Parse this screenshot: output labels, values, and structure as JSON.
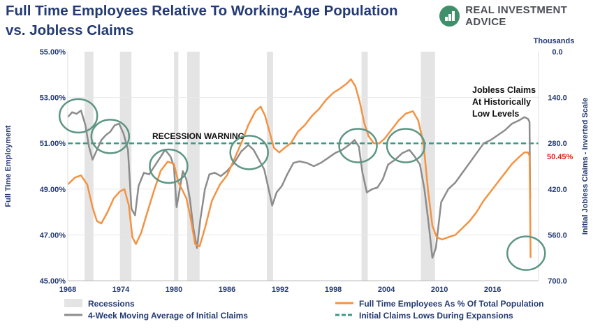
{
  "header": {
    "title_line1": "Full Time Employees Relative To Working-Age Population",
    "title_line2": "vs. Jobless Claims",
    "brand": "REAL INVESTMENT ADVICE"
  },
  "chart_data": {
    "type": "line",
    "title": "Full Time Employees Relative To Working-Age Population vs. Jobless Claims",
    "ylabel": "Full Time Employment",
    "y2label": "Initial Jobless Claims - Inverted Scale",
    "y2unit": "Thousands",
    "xlim": [
      1968,
      2021.2
    ],
    "ylim": [
      45,
      55
    ],
    "y2lim": [
      0,
      700
    ],
    "y2_inverted": true,
    "x_ticks": [
      "1968",
      "1974",
      "1980",
      "1986",
      "1992",
      "1998",
      "2004",
      "2010",
      "2016"
    ],
    "y_ticks": [
      "45.00%",
      "47.00%",
      "49.00%",
      "51.00%",
      "53.00%",
      "55.00%"
    ],
    "y2_ticks": [
      "0.0",
      "140.0",
      "280.0",
      "420.0",
      "560.0",
      "700.0"
    ],
    "grid": true,
    "recessions": [
      [
        1969.9,
        1970.9
      ],
      [
        1973.9,
        1975.2
      ],
      [
        1980.0,
        1980.5
      ],
      [
        1981.5,
        1982.9
      ],
      [
        1990.5,
        1991.2
      ],
      [
        2001.2,
        2001.9
      ],
      [
        2007.9,
        2009.5
      ]
    ],
    "reference_line": {
      "value": 51.0,
      "label": "RECESSION WARNING"
    },
    "annotation": {
      "text": [
        "Jobless Claims",
        "At Historically",
        "Low Levels"
      ]
    },
    "last_value_label": "50.45%",
    "series": [
      {
        "name": "Full Time Employees As % Of Total Population",
        "color": "#f39343",
        "x": [
          1968,
          1968.8,
          1969.5,
          1970.2,
          1970.8,
          1971.3,
          1971.8,
          1972.5,
          1973.2,
          1973.9,
          1974.4,
          1974.9,
          1975.3,
          1975.7,
          1976.3,
          1977.0,
          1977.8,
          1978.5,
          1979.3,
          1980.0,
          1980.5,
          1980.9,
          1981.4,
          1981.9,
          1982.4,
          1982.9,
          1983.5,
          1984.3,
          1985.2,
          1986.0,
          1986.8,
          1987.6,
          1988.4,
          1989.2,
          1989.8,
          1990.3,
          1990.8,
          1991.3,
          1991.9,
          1992.5,
          1993.2,
          1994.0,
          1994.8,
          1995.6,
          1996.4,
          1997.2,
          1998.0,
          1998.8,
          1999.5,
          2000.0,
          2000.5,
          2001.0,
          2001.5,
          2002.0,
          2002.6,
          2003.2,
          2003.8,
          2004.6,
          2005.4,
          2006.2,
          2007.0,
          2007.6,
          2008.2,
          2008.7,
          2009.2,
          2009.7,
          2010.3,
          2011.0,
          2011.8,
          2012.6,
          2013.4,
          2014.2,
          2015.0,
          2015.8,
          2016.6,
          2017.4,
          2018.2,
          2019.0,
          2019.6,
          2020.0,
          2020.18,
          2020.25,
          2020.3
        ],
        "values": [
          49.2,
          49.5,
          49.6,
          49.2,
          48.2,
          47.6,
          47.5,
          48.0,
          48.6,
          48.9,
          49.0,
          48.3,
          46.9,
          46.6,
          47.1,
          48.0,
          49.0,
          49.8,
          50.2,
          50.1,
          49.3,
          49.0,
          48.6,
          47.7,
          46.6,
          46.5,
          47.3,
          48.5,
          49.2,
          49.6,
          50.3,
          51.0,
          51.8,
          52.4,
          52.6,
          52.2,
          51.5,
          50.8,
          50.6,
          50.8,
          51.0,
          51.5,
          51.8,
          52.2,
          52.5,
          52.9,
          53.2,
          53.4,
          53.6,
          53.8,
          53.5,
          52.8,
          51.9,
          51.3,
          51.0,
          51.0,
          51.2,
          51.6,
          52.0,
          52.3,
          52.4,
          52.0,
          51.0,
          49.0,
          47.4,
          46.9,
          46.8,
          46.9,
          47.0,
          47.3,
          47.6,
          48.0,
          48.5,
          48.9,
          49.3,
          49.7,
          50.1,
          50.4,
          50.6,
          50.6,
          50.45,
          48.0,
          46.0
        ]
      },
      {
        "name": "4-Week Moving Average of Initial Claims",
        "color": "#8c8c8c",
        "axis": "right",
        "x": [
          1968,
          1968.5,
          1969.0,
          1969.5,
          1970.0,
          1970.4,
          1970.8,
          1971.3,
          1971.8,
          1972.3,
          1972.8,
          1973.3,
          1973.8,
          1974.3,
          1974.8,
          1975.2,
          1975.6,
          1976.0,
          1976.6,
          1977.2,
          1977.8,
          1978.4,
          1979.0,
          1979.6,
          1980.0,
          1980.3,
          1980.6,
          1981.0,
          1981.4,
          1981.8,
          1982.2,
          1982.6,
          1983.0,
          1983.5,
          1984.0,
          1984.6,
          1985.3,
          1986.0,
          1986.8,
          1987.6,
          1988.4,
          1989.0,
          1989.6,
          1990.2,
          1990.7,
          1991.1,
          1991.6,
          1992.2,
          1992.8,
          1993.5,
          1994.2,
          1995.0,
          1995.8,
          1996.6,
          1997.4,
          1998.2,
          1999.0,
          1999.8,
          2000.4,
          2000.9,
          2001.3,
          2001.8,
          2002.4,
          2003.0,
          2003.6,
          2004.2,
          2005.0,
          2005.8,
          2006.6,
          2007.2,
          2007.8,
          2008.3,
          2008.8,
          2009.2,
          2009.6,
          2010.2,
          2011.0,
          2011.8,
          2012.6,
          2013.4,
          2014.2,
          2015.0,
          2015.8,
          2016.6,
          2017.4,
          2018.2,
          2019.0,
          2019.6,
          2020.0,
          2020.18,
          2020.25
        ],
        "values": [
          200,
          185,
          190,
          180,
          225,
          290,
          330,
          300,
          270,
          255,
          245,
          225,
          220,
          250,
          300,
          480,
          500,
          410,
          370,
          375,
          350,
          325,
          300,
          320,
          350,
          475,
          430,
          365,
          390,
          450,
          540,
          600,
          510,
          420,
          375,
          370,
          380,
          365,
          340,
          305,
          285,
          300,
          330,
          360,
          420,
          470,
          430,
          410,
          375,
          340,
          335,
          340,
          350,
          340,
          325,
          310,
          300,
          285,
          270,
          290,
          370,
          430,
          420,
          415,
          390,
          345,
          330,
          310,
          300,
          320,
          345,
          420,
          530,
          630,
          600,
          460,
          420,
          400,
          370,
          340,
          310,
          280,
          270,
          255,
          240,
          220,
          210,
          200,
          205,
          215,
          450
        ]
      },
      {
        "name": "Initial Claims Lows During Expansions",
        "color": "#3d9b83",
        "dashed": true,
        "values": [
          51.0
        ]
      }
    ],
    "recession_legend": "Recessions",
    "circles": [
      {
        "x": 1969.2,
        "y": 52.2
      },
      {
        "x": 1972.8,
        "y": 51.3
      },
      {
        "x": 1979.4,
        "y": 50.0
      },
      {
        "x": 1988.5,
        "y": 50.6
      },
      {
        "x": 2000.8,
        "y": 50.9
      },
      {
        "x": 2006.2,
        "y": 50.9
      },
      {
        "x": 2019.8,
        "y": 46.2
      }
    ]
  }
}
